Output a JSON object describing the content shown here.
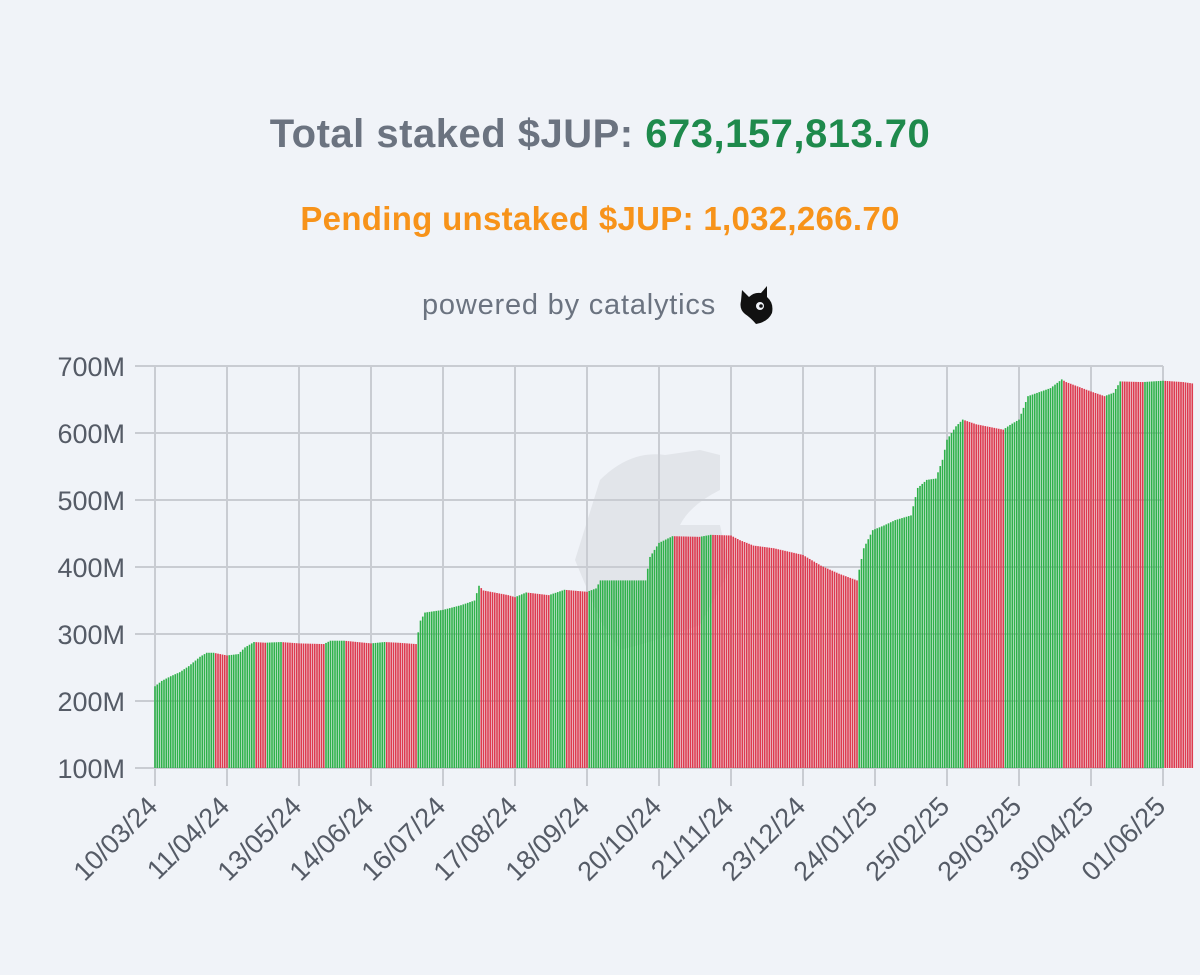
{
  "header": {
    "total_label": "Total staked $JUP:",
    "total_value": "673,157,813.70",
    "pending_text": "Pending unstaked $JUP: 1,032,266.70",
    "powered_text": "powered by catalytics",
    "logo_icon": "cat-head-icon"
  },
  "colors": {
    "up": "#2fb14a",
    "down": "#de3a4f",
    "total_value": "#1e8a4c",
    "pending": "#f7931a",
    "grid": "#c9ccd2",
    "background": "#f0f3f8"
  },
  "chart_data": {
    "type": "bar",
    "x_type": "date",
    "ylim": [
      100,
      700
    ],
    "y_unit": "M",
    "yticks": [
      100,
      200,
      300,
      400,
      500,
      600,
      700
    ],
    "ytick_labels": [
      "100M",
      "200M",
      "300M",
      "400M",
      "500M",
      "600M",
      "700M"
    ],
    "xtick_labels": [
      "10/03/24",
      "11/04/24",
      "13/05/24",
      "14/06/24",
      "16/07/24",
      "17/08/24",
      "18/09/24",
      "20/10/24",
      "21/11/24",
      "23/12/24",
      "24/01/25",
      "25/02/25",
      "29/03/25",
      "30/04/25",
      "01/06/25"
    ],
    "grid": true,
    "bar_colors_meaning": {
      "green": "increase",
      "red": "decrease"
    },
    "anchors": [
      [
        "10/03/24",
        222
      ],
      [
        "13/03/24",
        230
      ],
      [
        "17/03/24",
        237
      ],
      [
        "21/03/24",
        243
      ],
      [
        "25/03/24",
        252
      ],
      [
        "30/03/24",
        266
      ],
      [
        "02/04/24",
        272
      ],
      [
        "05/04/24",
        272
      ],
      [
        "11/04/24",
        268
      ],
      [
        "16/04/24",
        270
      ],
      [
        "19/04/24",
        280
      ],
      [
        "23/04/24",
        288
      ],
      [
        "28/04/24",
        287
      ],
      [
        "05/05/24",
        288
      ],
      [
        "13/05/24",
        286
      ],
      [
        "24/05/24",
        285
      ],
      [
        "27/05/24",
        290
      ],
      [
        "02/06/24",
        290
      ],
      [
        "14/06/24",
        286
      ],
      [
        "20/06/24",
        288
      ],
      [
        "26/06/24",
        287
      ],
      [
        "04/07/24",
        285
      ],
      [
        "06/07/24",
        320
      ],
      [
        "08/07/24",
        332
      ],
      [
        "16/07/24",
        336
      ],
      [
        "24/07/24",
        343
      ],
      [
        "30/07/24",
        350
      ],
      [
        "01/08/24",
        372
      ],
      [
        "03/08/24",
        365
      ],
      [
        "14/08/24",
        358
      ],
      [
        "17/08/24",
        355
      ],
      [
        "22/08/24",
        362
      ],
      [
        "01/09/24",
        358
      ],
      [
        "08/09/24",
        366
      ],
      [
        "18/09/24",
        363
      ],
      [
        "22/09/24",
        368
      ],
      [
        "24/09/24",
        380
      ],
      [
        "01/10/24",
        380
      ],
      [
        "14/10/24",
        380
      ],
      [
        "16/10/24",
        415
      ],
      [
        "20/10/24",
        436
      ],
      [
        "26/10/24",
        446
      ],
      [
        "07/11/24",
        445
      ],
      [
        "12/11/24",
        448
      ],
      [
        "21/11/24",
        447
      ],
      [
        "25/11/24",
        440
      ],
      [
        "01/12/24",
        432
      ],
      [
        "10/12/24",
        428
      ],
      [
        "23/12/24",
        418
      ],
      [
        "31/12/24",
        402
      ],
      [
        "08/01/25",
        390
      ],
      [
        "16/01/25",
        380
      ],
      [
        "19/01/25",
        428
      ],
      [
        "23/01/25",
        455
      ],
      [
        "28/01/25",
        462
      ],
      [
        "02/02/25",
        470
      ],
      [
        "09/02/25",
        477
      ],
      [
        "12/02/25",
        518
      ],
      [
        "16/02/25",
        530
      ],
      [
        "20/02/25",
        532
      ],
      [
        "23/02/25",
        560
      ],
      [
        "25/02/25",
        590
      ],
      [
        "01/03/25",
        610
      ],
      [
        "04/03/25",
        620
      ],
      [
        "10/03/25",
        613
      ],
      [
        "22/03/25",
        605
      ],
      [
        "25/03/25",
        612
      ],
      [
        "29/03/25",
        620
      ],
      [
        "02/04/25",
        655
      ],
      [
        "12/04/25",
        667
      ],
      [
        "17/04/25",
        680
      ],
      [
        "19/04/25",
        676
      ],
      [
        "30/04/25",
        662
      ],
      [
        "06/05/25",
        655
      ],
      [
        "10/05/25",
        660
      ],
      [
        "13/05/25",
        677
      ],
      [
        "23/05/25",
        676
      ],
      [
        "01/06/25",
        678
      ],
      [
        "10/06/25",
        676
      ],
      [
        "14/06/25",
        674
      ]
    ]
  }
}
